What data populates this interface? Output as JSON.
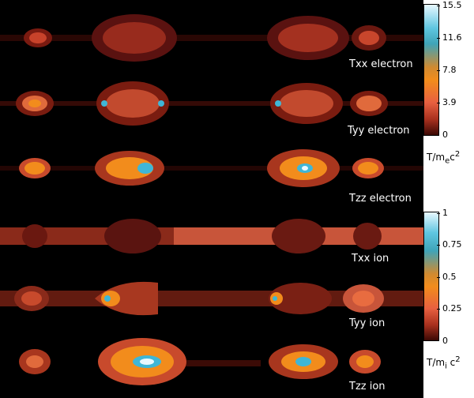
{
  "panels": [
    {
      "label": "Txx electron"
    },
    {
      "label": "Tyy electron"
    },
    {
      "label": "Tzz electron"
    },
    {
      "label": "Txx ion"
    },
    {
      "label": "Tyy ion"
    },
    {
      "label": "Tzz ion"
    }
  ],
  "colorbars": {
    "electron": {
      "ticks": [
        "15.5",
        "11.6",
        "7.8",
        "3.9",
        "0"
      ],
      "unit": "T/m",
      "unit_sub": "e",
      "unit_tail": "c",
      "unit_sup": "2"
    },
    "ion": {
      "ticks": [
        "1",
        "0.75",
        "0.5",
        "0.25",
        "0"
      ],
      "unit": "T/m",
      "unit_sub": "i",
      "unit_tail": " c",
      "unit_sup": "2"
    }
  },
  "colors": {
    "background": "#000000",
    "low": "#5a1008",
    "mid": "#e8603a",
    "high": "#f28c1c",
    "peak": "#3fb6d6"
  }
}
